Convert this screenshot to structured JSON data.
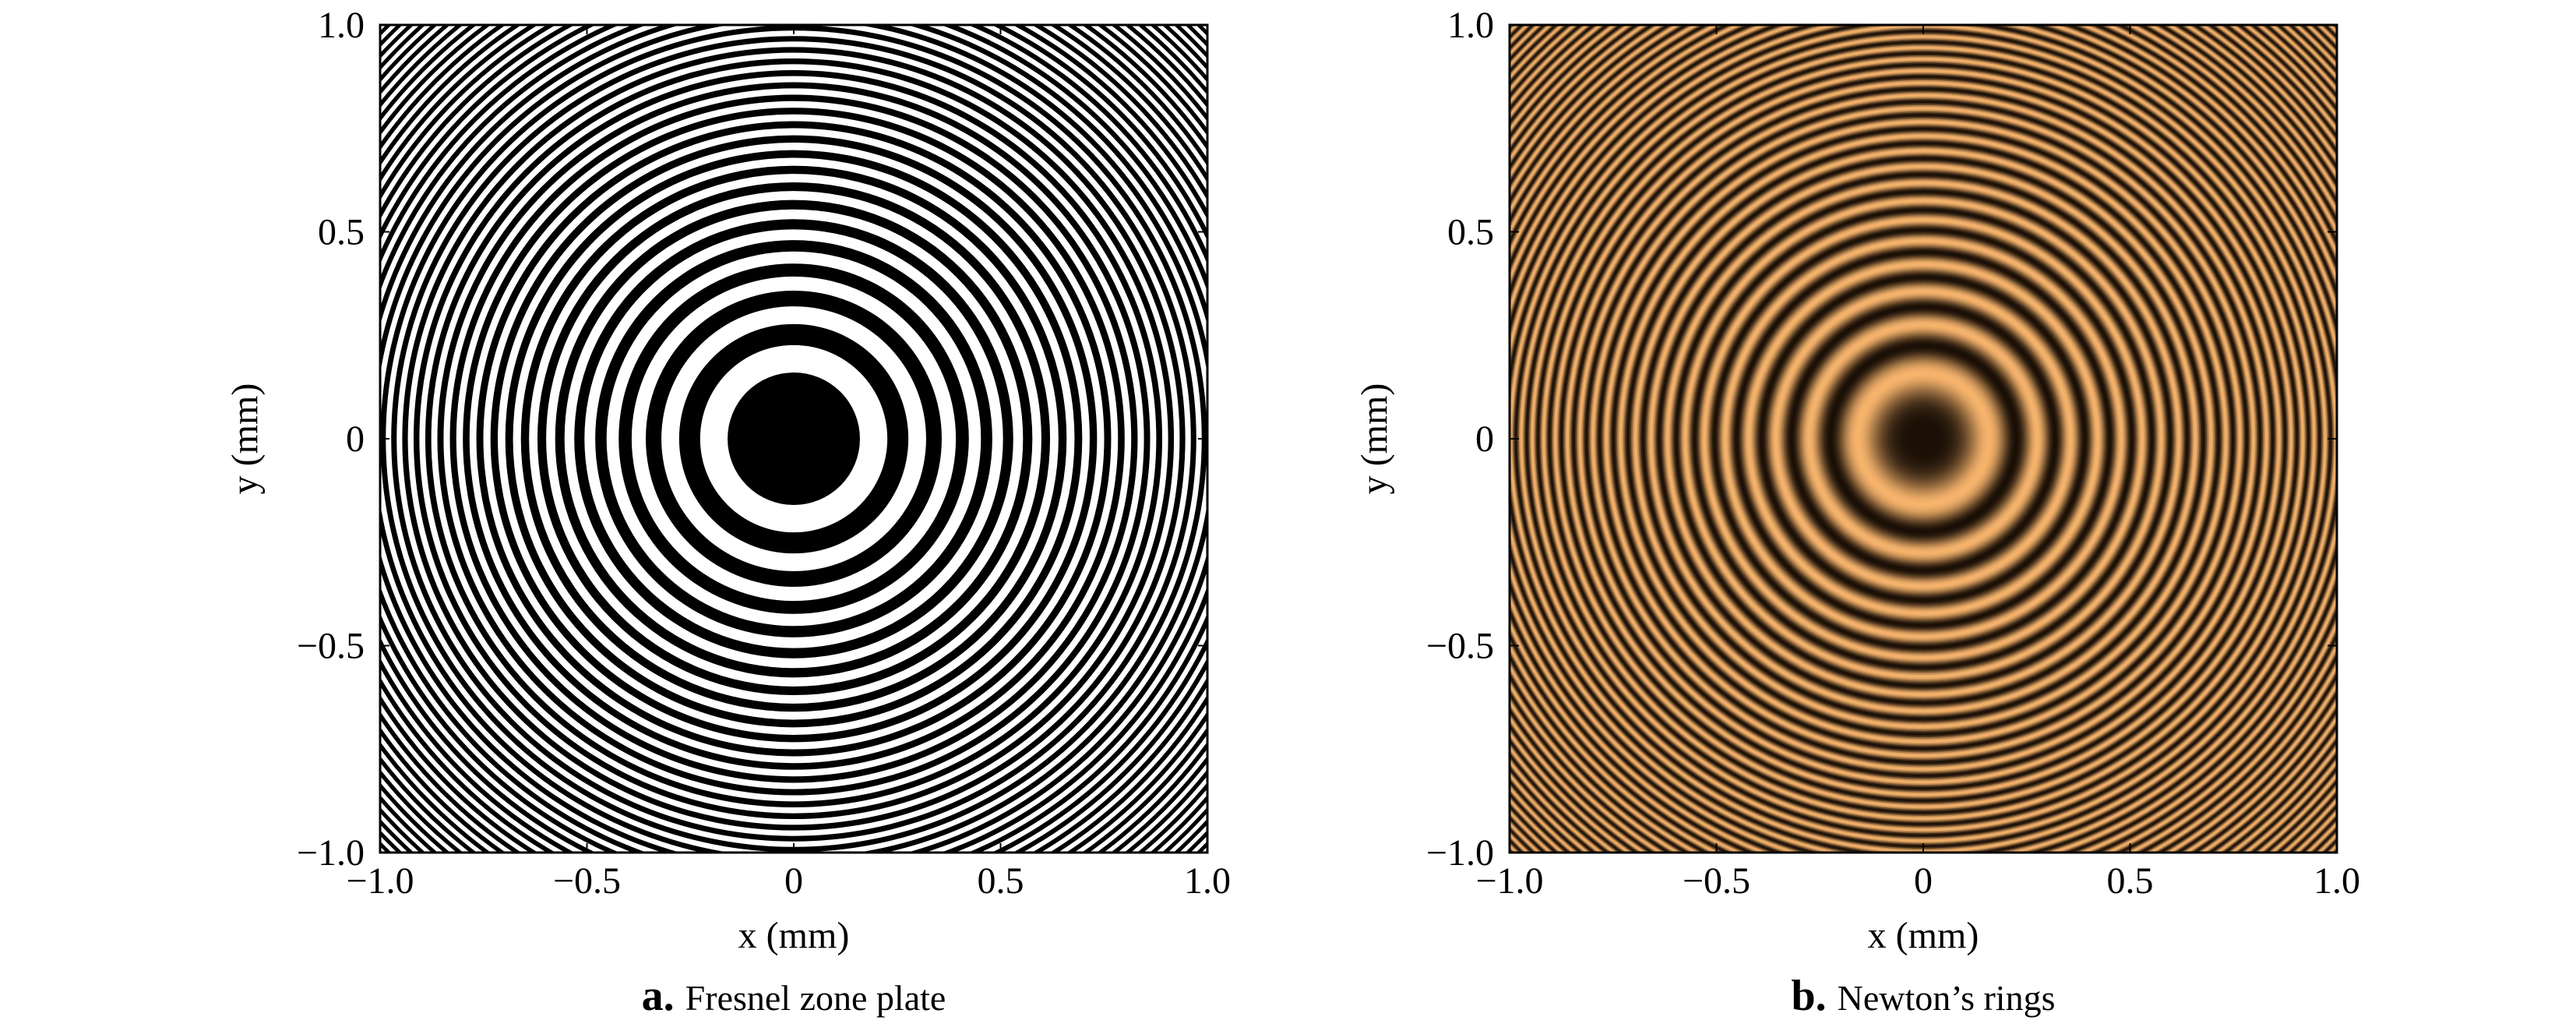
{
  "chart_data": [
    {
      "type": "heatmap",
      "pattern": "binary concentric rings",
      "colormap": "black-white",
      "colors": {
        "dark": "#000000",
        "light": "#ffffff"
      },
      "xlabel": "x (mm)",
      "ylabel": "y (mm)",
      "xlim": [
        -1.0,
        1.0
      ],
      "ylim": [
        -1.0,
        1.0
      ],
      "xticks": [
        -1.0,
        -0.5,
        0,
        0.5,
        1.0
      ],
      "yticks": [
        -1.0,
        -0.5,
        0,
        0.5,
        1.0
      ],
      "xtick_labels": [
        "−1.0",
        "−0.5",
        "0",
        "0.5",
        "1.0"
      ],
      "ytick_labels": [
        "−1.0",
        "−0.5",
        "0",
        "0.5",
        "1.0"
      ],
      "ring_radius_scale_mm": 0.16,
      "center": "dark",
      "grid": false,
      "caption": {
        "letter": "a.",
        "text": "Fresnel zone plate"
      }
    },
    {
      "type": "heatmap",
      "pattern": "sinusoidal concentric rings",
      "colormap": "black-copper",
      "colors": {
        "dark": "#1a0f06",
        "light": "#f5b36c"
      },
      "xlabel": "x (mm)",
      "ylabel": "y (mm)",
      "xlim": [
        -1.0,
        1.0
      ],
      "ylim": [
        -1.0,
        1.0
      ],
      "xticks": [
        -1.0,
        -0.5,
        0,
        0.5,
        1.0
      ],
      "yticks": [
        -1.0,
        -0.5,
        0,
        0.5,
        1.0
      ],
      "xtick_labels": [
        "−1.0",
        "−0.5",
        "0",
        "0.5",
        "1.0"
      ],
      "ytick_labels": [
        "−1.0",
        "−0.5",
        "0",
        "0.5",
        "1.0"
      ],
      "ring_radius_scale_mm": 0.16,
      "center": "dark",
      "grid": false,
      "caption": {
        "letter": "b.",
        "text": "Newton’s rings"
      }
    }
  ]
}
